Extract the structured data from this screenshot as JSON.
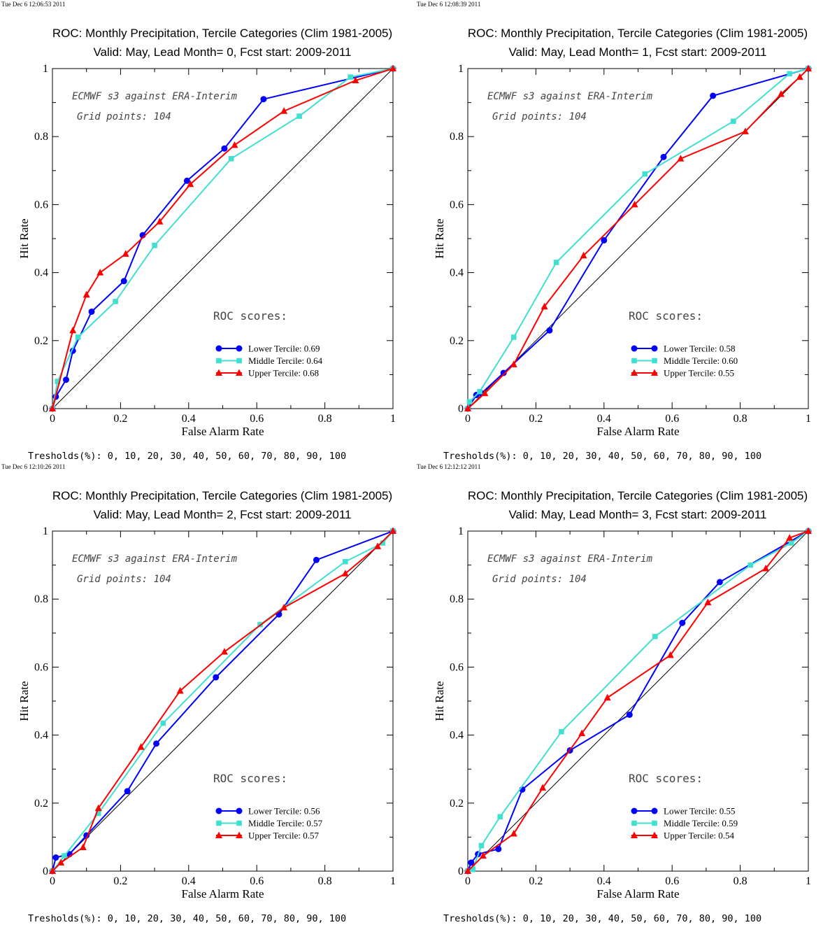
{
  "thresholds_text": "Tresholds(%): 0, 10, 20, 30, 40, 50, 60, 70, 80, 90, 100",
  "annotation_1": "ECMWF s3 against ERA-Interim",
  "annotation_2": "Grid points:  104",
  "roc_scores_label": "ROC scores:",
  "colors": {
    "lower": "#0000ff",
    "middle": "#40e0d0",
    "upper": "#ff0000",
    "diagonal": "#000000"
  },
  "chart_data": [
    {
      "type": "line",
      "timestamp": "Tue Dec  6 12:06:53 2011",
      "title": "ROC: Monthly Precipitation, Tercile Categories (Clim 1981-2005)",
      "subtitle": "Valid: May, Lead Month= 0, Fcst start: 2009-2011",
      "xlabel": "False Alarm Rate",
      "ylabel": "Hit Rate",
      "xlim": [
        0,
        1
      ],
      "ylim": [
        0,
        1
      ],
      "xticks": [
        "0",
        "0.2",
        "0.4",
        "0.6",
        "0.8",
        "1"
      ],
      "yticks": [
        "0",
        "0.2",
        "0.4",
        "0.6",
        "0.8",
        "1"
      ],
      "series": [
        {
          "name": "Lower Tercile: 0.69",
          "key": "lower",
          "marker": "circle",
          "x": [
            0,
            0.01,
            0.04,
            0.06,
            0.115,
            0.21,
            0.265,
            0.395,
            0.505,
            0.62,
            1
          ],
          "y": [
            0,
            0.035,
            0.085,
            0.17,
            0.285,
            0.375,
            0.51,
            0.67,
            0.765,
            0.91,
            1
          ]
        },
        {
          "name": "Middle Tercile: 0.64",
          "key": "middle",
          "marker": "square",
          "x": [
            0,
            0.015,
            0.075,
            0.185,
            0.3,
            0.525,
            0.725,
            0.875,
            1
          ],
          "y": [
            0,
            0.08,
            0.21,
            0.315,
            0.48,
            0.735,
            0.86,
            0.975,
            1
          ]
        },
        {
          "name": "Upper Tercile: 0.68",
          "key": "upper",
          "marker": "triangle",
          "x": [
            0,
            0.06,
            0.1,
            0.14,
            0.215,
            0.315,
            0.405,
            0.535,
            0.68,
            0.89,
            1
          ],
          "y": [
            0,
            0.23,
            0.335,
            0.4,
            0.455,
            0.55,
            0.66,
            0.775,
            0.875,
            0.965,
            1
          ]
        }
      ]
    },
    {
      "type": "line",
      "timestamp": "Tue Dec  6 12:08:39 2011",
      "title": "ROC: Monthly Precipitation, Tercile Categories (Clim 1981-2005)",
      "subtitle": "Valid: May, Lead Month= 1, Fcst start: 2009-2011",
      "xlabel": "False Alarm Rate",
      "ylabel": "Hit Rate",
      "xlim": [
        0,
        1
      ],
      "ylim": [
        0,
        1
      ],
      "xticks": [
        "0",
        "0.2",
        "0.4",
        "0.6",
        "0.8",
        "1"
      ],
      "yticks": [
        "0",
        "0.2",
        "0.4",
        "0.6",
        "0.8",
        "1"
      ],
      "series": [
        {
          "name": "Lower Tercile: 0.58",
          "key": "lower",
          "marker": "circle",
          "x": [
            0,
            0.025,
            0.04,
            0.105,
            0.24,
            0.4,
            0.575,
            0.72,
            1
          ],
          "y": [
            0,
            0.04,
            0.045,
            0.105,
            0.23,
            0.495,
            0.74,
            0.92,
            1
          ]
        },
        {
          "name": "Middle Tercile: 0.60",
          "key": "middle",
          "marker": "square",
          "x": [
            0,
            0.005,
            0.035,
            0.135,
            0.26,
            0.52,
            0.78,
            0.945,
            1
          ],
          "y": [
            0,
            0.02,
            0.05,
            0.21,
            0.43,
            0.69,
            0.845,
            0.985,
            1
          ]
        },
        {
          "name": "Upper Tercile: 0.55",
          "key": "upper",
          "marker": "triangle",
          "x": [
            0,
            0.05,
            0.135,
            0.225,
            0.34,
            0.49,
            0.625,
            0.815,
            0.92,
            0.975,
            1
          ],
          "y": [
            0,
            0.045,
            0.13,
            0.3,
            0.45,
            0.6,
            0.735,
            0.815,
            0.925,
            0.975,
            1
          ]
        }
      ]
    },
    {
      "type": "line",
      "timestamp": "Tue Dec  6 12:10:26 2011",
      "title": "ROC: Monthly Precipitation, Tercile Categories (Clim 1981-2005)",
      "subtitle": "Valid: May, Lead Month= 2, Fcst start: 2009-2011",
      "xlabel": "False Alarm Rate",
      "ylabel": "Hit Rate",
      "xlim": [
        0,
        1
      ],
      "ylim": [
        0,
        1
      ],
      "xticks": [
        "0",
        "0.2",
        "0.4",
        "0.6",
        "0.8",
        "1"
      ],
      "yticks": [
        "0",
        "0.2",
        "0.4",
        "0.6",
        "0.8",
        "1"
      ],
      "series": [
        {
          "name": "Lower Tercile: 0.56",
          "key": "lower",
          "marker": "circle",
          "x": [
            0,
            0.01,
            0.05,
            0.1,
            0.22,
            0.305,
            0.48,
            0.665,
            0.775,
            1
          ],
          "y": [
            0,
            0.04,
            0.05,
            0.105,
            0.235,
            0.375,
            0.57,
            0.755,
            0.915,
            1
          ]
        },
        {
          "name": "Middle Tercile: 0.57",
          "key": "middle",
          "marker": "square",
          "x": [
            0,
            0.035,
            0.135,
            0.325,
            0.61,
            0.86,
            0.97,
            1
          ],
          "y": [
            0,
            0.045,
            0.17,
            0.435,
            0.725,
            0.91,
            0.965,
            1
          ]
        },
        {
          "name": "Upper Tercile: 0.57",
          "key": "upper",
          "marker": "triangle",
          "x": [
            0,
            0.025,
            0.09,
            0.135,
            0.26,
            0.375,
            0.505,
            0.68,
            0.86,
            0.955,
            1
          ],
          "y": [
            0,
            0.025,
            0.07,
            0.185,
            0.365,
            0.53,
            0.645,
            0.775,
            0.875,
            0.955,
            1
          ]
        }
      ]
    },
    {
      "type": "line",
      "timestamp": "Tue Dec  6 12:12:12 2011",
      "title": "ROC: Monthly Precipitation, Tercile Categories (Clim 1981-2005)",
      "subtitle": "Valid: May, Lead Month= 3, Fcst start: 2009-2011",
      "xlabel": "False Alarm Rate",
      "ylabel": "Hit Rate",
      "xlim": [
        0,
        1
      ],
      "ylim": [
        0,
        1
      ],
      "xticks": [
        "0",
        "0.2",
        "0.4",
        "0.6",
        "0.8",
        "1"
      ],
      "yticks": [
        "0",
        "0.2",
        "0.4",
        "0.6",
        "0.8",
        "1"
      ],
      "series": [
        {
          "name": "Lower Tercile: 0.55",
          "key": "lower",
          "marker": "circle",
          "x": [
            0,
            0.01,
            0.03,
            0.09,
            0.16,
            0.3,
            0.475,
            0.63,
            0.74,
            1
          ],
          "y": [
            0,
            0.025,
            0.05,
            0.065,
            0.24,
            0.355,
            0.46,
            0.73,
            0.85,
            1
          ]
        },
        {
          "name": "Middle Tercile: 0.59",
          "key": "middle",
          "marker": "square",
          "x": [
            0,
            0.015,
            0.04,
            0.095,
            0.275,
            0.55,
            0.83,
            0.95,
            1
          ],
          "y": [
            0,
            0.005,
            0.075,
            0.16,
            0.41,
            0.69,
            0.9,
            0.965,
            1
          ]
        },
        {
          "name": "Upper Tercile: 0.54",
          "key": "upper",
          "marker": "triangle",
          "x": [
            0,
            0.045,
            0.135,
            0.22,
            0.335,
            0.41,
            0.595,
            0.705,
            0.875,
            0.945,
            1
          ],
          "y": [
            0,
            0.045,
            0.11,
            0.245,
            0.405,
            0.51,
            0.635,
            0.79,
            0.89,
            0.98,
            1
          ]
        }
      ]
    }
  ]
}
